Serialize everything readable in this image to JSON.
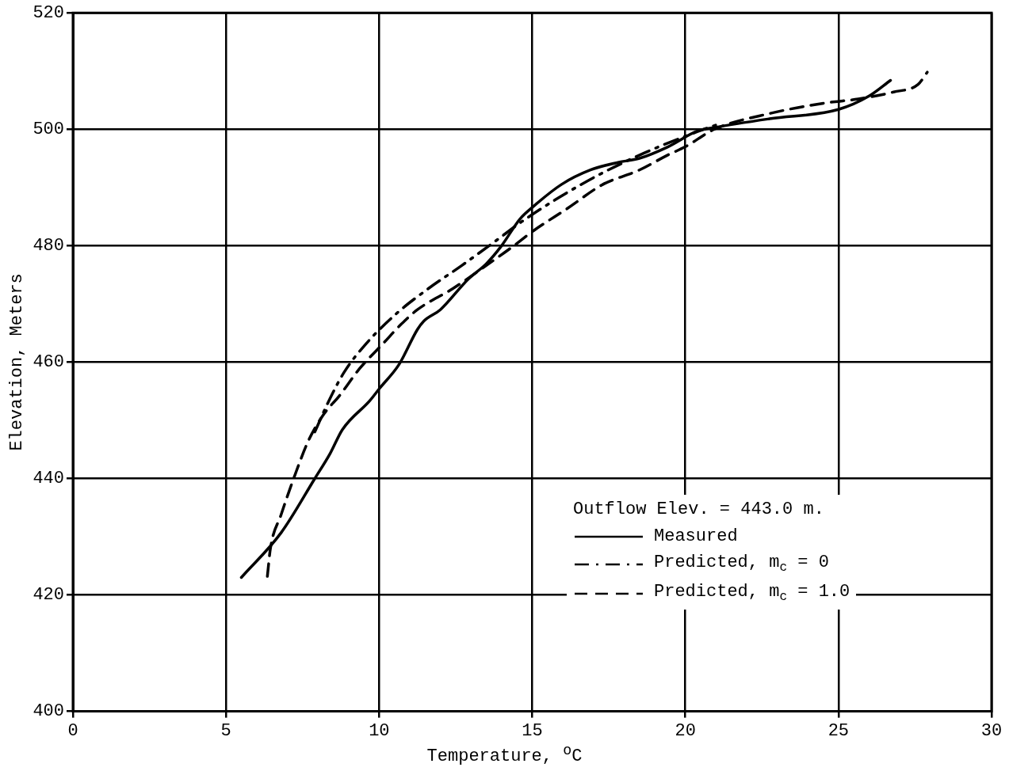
{
  "chart_data": {
    "type": "line",
    "xlabel": "Temperature, $^{o}$C",
    "ylabel": "Elevation, Meters",
    "legend_title": "Outflow Elev. = 443.0 m.",
    "legend": "bottom right",
    "grid": true,
    "marker": "none",
    "xlim": [
      0,
      30
    ],
    "xticks": [
      0,
      5,
      10,
      15,
      20,
      25,
      30
    ],
    "ylim": [
      400,
      520
    ],
    "yticks": [
      400,
      420,
      440,
      460,
      480,
      500,
      520
    ],
    "series": [
      {
        "name": "Measured",
        "color": "#000000",
        "line_style": "solid",
        "x": [
          5.5,
          6.8,
          7.9,
          8.4,
          8.8,
          9.7,
          10.0,
          10.65,
          11.25,
          11.45,
          12.0,
          12.9,
          13.5,
          14.0,
          14.6,
          15.05,
          15.95,
          16.9,
          17.8,
          18.5,
          19.4,
          20.4,
          20.95,
          22.75,
          25.0,
          26.0,
          26.7
        ],
        "values": [
          423,
          430.7,
          440,
          444.3,
          448.4,
          453.4,
          455.4,
          459.6,
          465.6,
          467,
          469,
          474.2,
          476.9,
          480,
          484.6,
          486.8,
          490.5,
          493,
          494.3,
          495,
          496.9,
          499.7,
          500.3,
          501.8,
          503.4,
          505.7,
          508.4
        ]
      },
      {
        "name": "Predicted, m$_{c}$ = 0",
        "color": "#000000",
        "line_style": "dashdot",
        "x": [
          7.9,
          8.3,
          8.85,
          9.6,
          10.6,
          11.6,
          12.7,
          13.75,
          14.65,
          15.85,
          17.15,
          18.65,
          20.4,
          21.2
        ],
        "values": [
          448,
          452.7,
          458.2,
          463.3,
          468.5,
          472.6,
          476.6,
          480.6,
          484.1,
          488.2,
          492.1,
          495.9,
          499.6,
          501.1
        ]
      },
      {
        "name": "Predicted, m$_{c}$ = 1.0",
        "color": "#000000",
        "line_style": "dashed",
        "x": [
          6.35,
          6.45,
          6.8,
          7.25,
          7.7,
          8.2,
          8.7,
          9.35,
          10.15,
          10.7,
          11.25,
          12.4,
          13.5,
          14.3,
          15.05,
          16.15,
          17.3,
          18.5,
          19.4,
          20.0,
          20.95,
          22.75,
          24.55,
          25.65,
          26.8,
          27.6,
          27.9
        ],
        "values": [
          423.2,
          428,
          433.8,
          440.6,
          446.6,
          451.1,
          454.2,
          458.8,
          463.3,
          466.4,
          469,
          472.6,
          476.6,
          479.6,
          482.6,
          486.4,
          490.5,
          493,
          495.5,
          497,
          500,
          502.7,
          504.5,
          505.2,
          506.4,
          507.7,
          509.8
        ]
      }
    ]
  }
}
